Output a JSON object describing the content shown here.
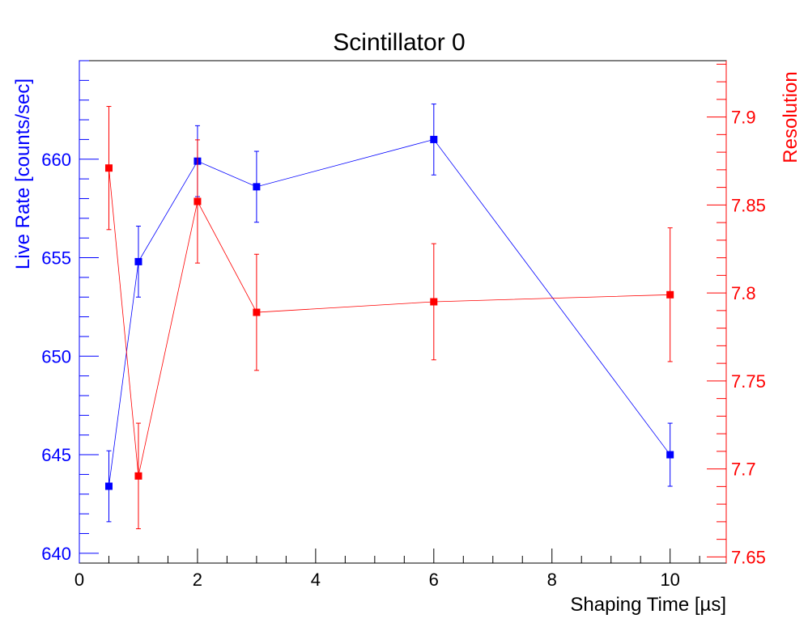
{
  "chart_data": {
    "type": "scatter",
    "title": "Scintillator 0",
    "xlabel": "Shaping Time [µs]",
    "xlim": [
      0,
      10.95
    ],
    "x_major_ticks": [
      0,
      2,
      4,
      6,
      8,
      10
    ],
    "x_minor_step": 0.5,
    "y_left": {
      "label": "Live Rate [counts/sec]",
      "lim": [
        639.5,
        665.0
      ],
      "major_ticks": [
        640,
        645,
        650,
        655,
        660
      ],
      "minor_step": 1,
      "color": "#0000ff"
    },
    "y_right": {
      "label": "Resolution",
      "lim": [
        7.6465,
        7.932
      ],
      "major_ticks": [
        7.65,
        7.7,
        7.75,
        7.8,
        7.85,
        7.9
      ],
      "tick_labels": [
        "7.65",
        "7.7",
        "7.75",
        "7.8",
        "7.85",
        "7.9"
      ],
      "minor_step": 0.01,
      "color": "#ff0000"
    },
    "grid": false,
    "legend": "none",
    "series": [
      {
        "axis": "left",
        "color": "#0000ff",
        "points": [
          {
            "x": 0.5,
            "y": 643.4,
            "err": 1.8
          },
          {
            "x": 1,
            "y": 654.8,
            "err": 1.8
          },
          {
            "x": 2,
            "y": 659.9,
            "err": 1.8
          },
          {
            "x": 3,
            "y": 658.6,
            "err": 1.8
          },
          {
            "x": 6,
            "y": 661.0,
            "err": 1.8
          },
          {
            "x": 10,
            "y": 645.0,
            "err": 1.6
          }
        ]
      },
      {
        "axis": "right",
        "color": "#ff0000",
        "points": [
          {
            "x": 0.5,
            "y": 7.871,
            "err": 0.035
          },
          {
            "x": 1,
            "y": 7.696,
            "err": 0.03
          },
          {
            "x": 2,
            "y": 7.852,
            "err": 0.035
          },
          {
            "x": 3,
            "y": 7.789,
            "err": 0.033
          },
          {
            "x": 6,
            "y": 7.795,
            "err": 0.033
          },
          {
            "x": 10,
            "y": 7.799,
            "err": 0.038
          }
        ]
      }
    ]
  }
}
